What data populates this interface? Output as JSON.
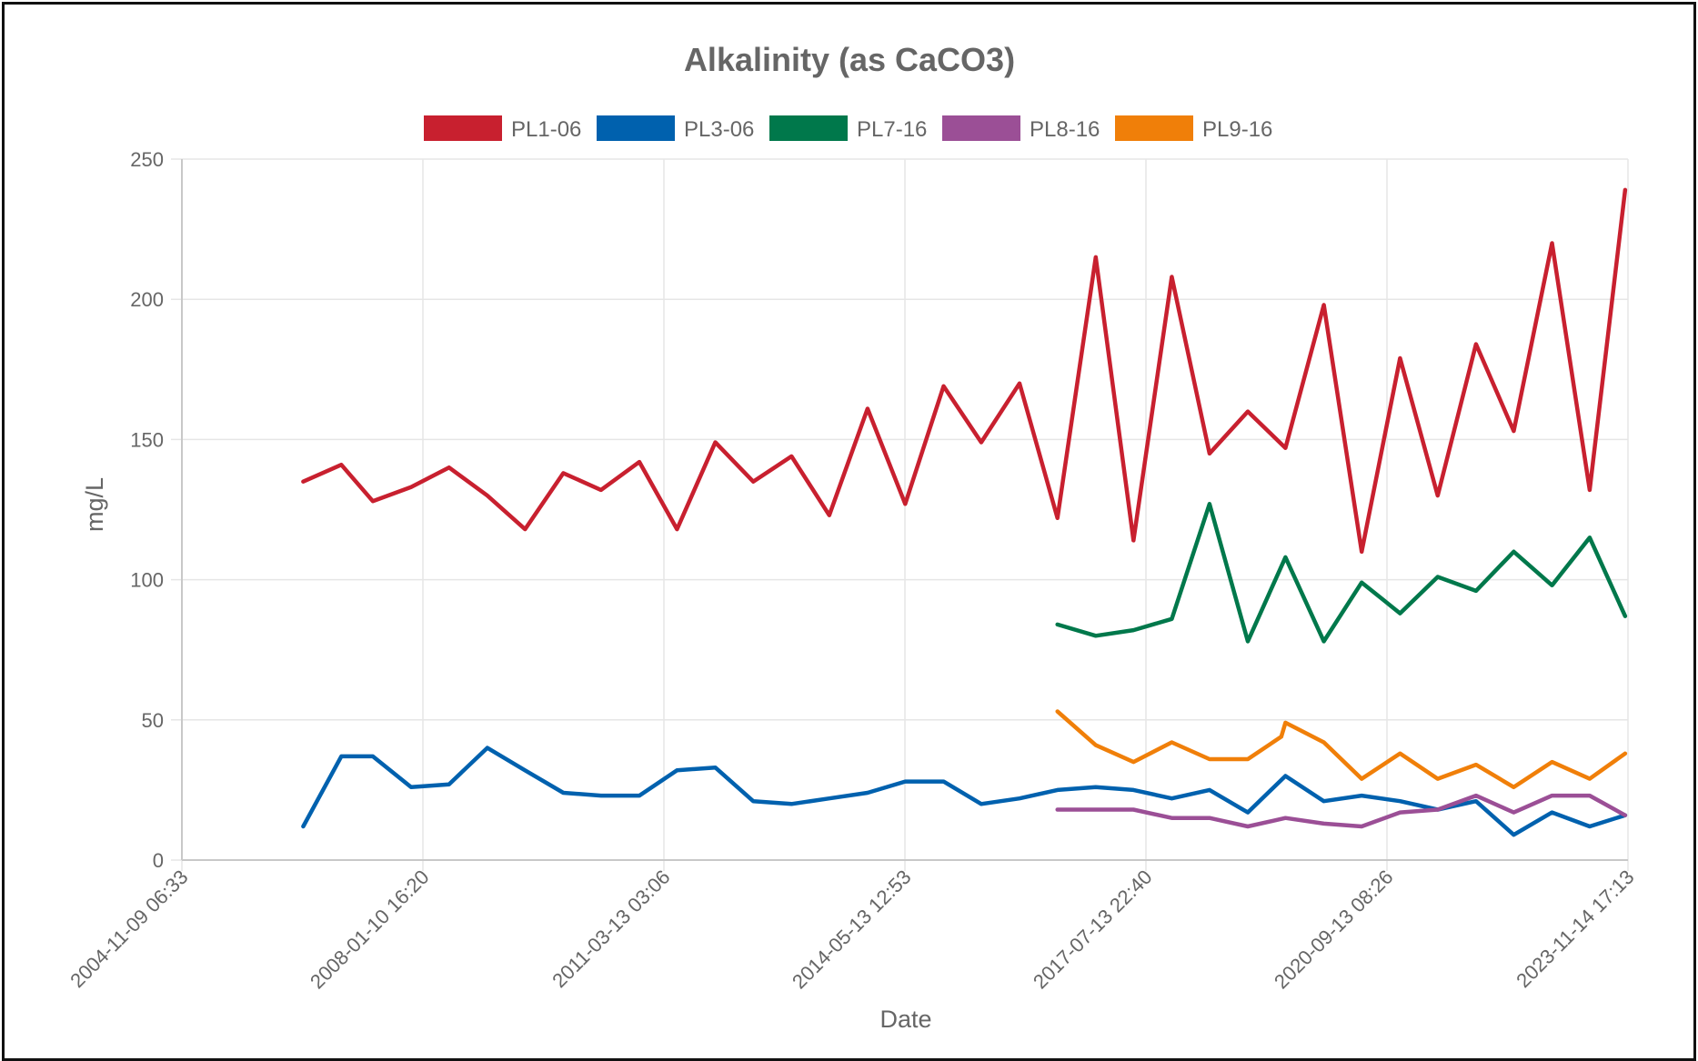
{
  "chart_data": {
    "type": "line",
    "title": "Alkalinity (as CaCO3)",
    "xlabel": "Date",
    "ylabel": "mg/L",
    "ylim": [
      0,
      250
    ],
    "yticks": [
      0,
      50,
      100,
      150,
      200,
      250
    ],
    "xlim": [
      "2004-11-09 06:33",
      "2023-11-14 17:13"
    ],
    "xticks": [
      "2004-11-09 06:33",
      "2008-01-10 16:20",
      "2011-03-13 03:06",
      "2014-05-13 12:53",
      "2017-07-13 22:40",
      "2020-09-13 08:26",
      "2023-11-14 17:13"
    ],
    "grid": true,
    "legend_position": "top",
    "series": [
      {
        "name": "PL1-06",
        "color": "#c8202f",
        "x": [
          "2006-06-15",
          "2006-12-15",
          "2007-05-15",
          "2007-11-15",
          "2008-05-15",
          "2008-11-15",
          "2009-05-15",
          "2009-11-15",
          "2010-05-15",
          "2010-11-15",
          "2011-05-15",
          "2011-11-15",
          "2012-05-15",
          "2012-11-15",
          "2013-05-15",
          "2013-11-15",
          "2014-05-15",
          "2014-11-15",
          "2015-05-15",
          "2015-11-15",
          "2016-05-15",
          "2016-11-15",
          "2017-05-15",
          "2017-11-15",
          "2018-05-15",
          "2018-11-15",
          "2019-05-15",
          "2019-11-15",
          "2020-05-15",
          "2020-11-15",
          "2021-05-15",
          "2021-11-15",
          "2022-05-15",
          "2022-11-15",
          "2023-05-15",
          "2023-11-01"
        ],
        "y": [
          135,
          141,
          128,
          133,
          140,
          130,
          118,
          138,
          132,
          142,
          118,
          149,
          135,
          144,
          123,
          161,
          127,
          169,
          149,
          170,
          122,
          215,
          114,
          208,
          145,
          160,
          147,
          198,
          110,
          179,
          130,
          184,
          153,
          220,
          132,
          239
        ]
      },
      {
        "name": "PL3-06",
        "color": "#0061ae",
        "x": [
          "2006-06-15",
          "2006-12-15",
          "2007-05-15",
          "2007-11-15",
          "2008-05-15",
          "2008-11-15",
          "2009-05-15",
          "2009-11-15",
          "2010-05-15",
          "2010-11-15",
          "2011-05-15",
          "2011-11-15",
          "2012-05-15",
          "2012-11-15",
          "2013-05-15",
          "2013-11-15",
          "2014-05-15",
          "2014-11-15",
          "2015-05-15",
          "2015-11-15",
          "2016-05-15",
          "2016-11-15",
          "2017-05-15",
          "2017-11-15",
          "2018-05-15",
          "2018-11-15",
          "2019-05-15",
          "2019-11-15",
          "2020-05-15",
          "2020-11-15",
          "2021-05-15",
          "2021-11-15",
          "2022-05-15",
          "2022-11-15",
          "2023-05-15",
          "2023-11-01"
        ],
        "y": [
          12,
          37,
          37,
          26,
          27,
          40,
          32,
          24,
          23,
          23,
          32,
          33,
          21,
          20,
          22,
          24,
          28,
          28,
          20,
          22,
          25,
          26,
          25,
          22,
          25,
          17,
          30,
          21,
          23,
          21,
          18,
          21,
          9,
          17,
          12,
          16
        ]
      },
      {
        "name": "PL7-16",
        "color": "#00784b",
        "x": [
          "2016-05-15",
          "2016-11-15",
          "2017-05-15",
          "2017-11-15",
          "2018-05-15",
          "2018-11-15",
          "2019-05-15",
          "2019-11-15",
          "2020-05-15",
          "2020-11-15",
          "2021-05-15",
          "2021-11-15",
          "2022-05-15",
          "2022-11-15",
          "2023-05-15",
          "2023-11-01"
        ],
        "y": [
          84,
          80,
          82,
          86,
          127,
          78,
          108,
          78,
          99,
          88,
          101,
          96,
          110,
          98,
          115,
          87
        ]
      },
      {
        "name": "PL8-16",
        "color": "#9b4f96",
        "x": [
          "2016-05-15",
          "2016-11-15",
          "2017-05-15",
          "2017-11-15",
          "2018-05-15",
          "2018-11-15",
          "2019-05-15",
          "2019-11-15",
          "2020-05-15",
          "2020-11-15",
          "2021-05-15",
          "2021-11-15",
          "2022-05-15",
          "2022-11-15",
          "2023-05-15",
          "2023-11-01"
        ],
        "y": [
          18,
          18,
          18,
          15,
          15,
          12,
          15,
          13,
          12,
          17,
          18,
          23,
          17,
          23,
          23,
          16
        ]
      },
      {
        "name": "PL9-16",
        "color": "#f07f09",
        "x": [
          "2016-05-15",
          "2016-11-15",
          "2017-05-15",
          "2017-11-15",
          "2018-05-15",
          "2018-11-15",
          "2019-04-25",
          "2019-05-15",
          "2019-11-15",
          "2020-05-15",
          "2020-11-15",
          "2021-05-15",
          "2021-11-15",
          "2022-05-15",
          "2022-11-15",
          "2023-05-15",
          "2023-11-01"
        ],
        "y": [
          53,
          41,
          35,
          42,
          36,
          36,
          44,
          49,
          42,
          29,
          38,
          29,
          34,
          26,
          35,
          29,
          38
        ]
      }
    ]
  }
}
